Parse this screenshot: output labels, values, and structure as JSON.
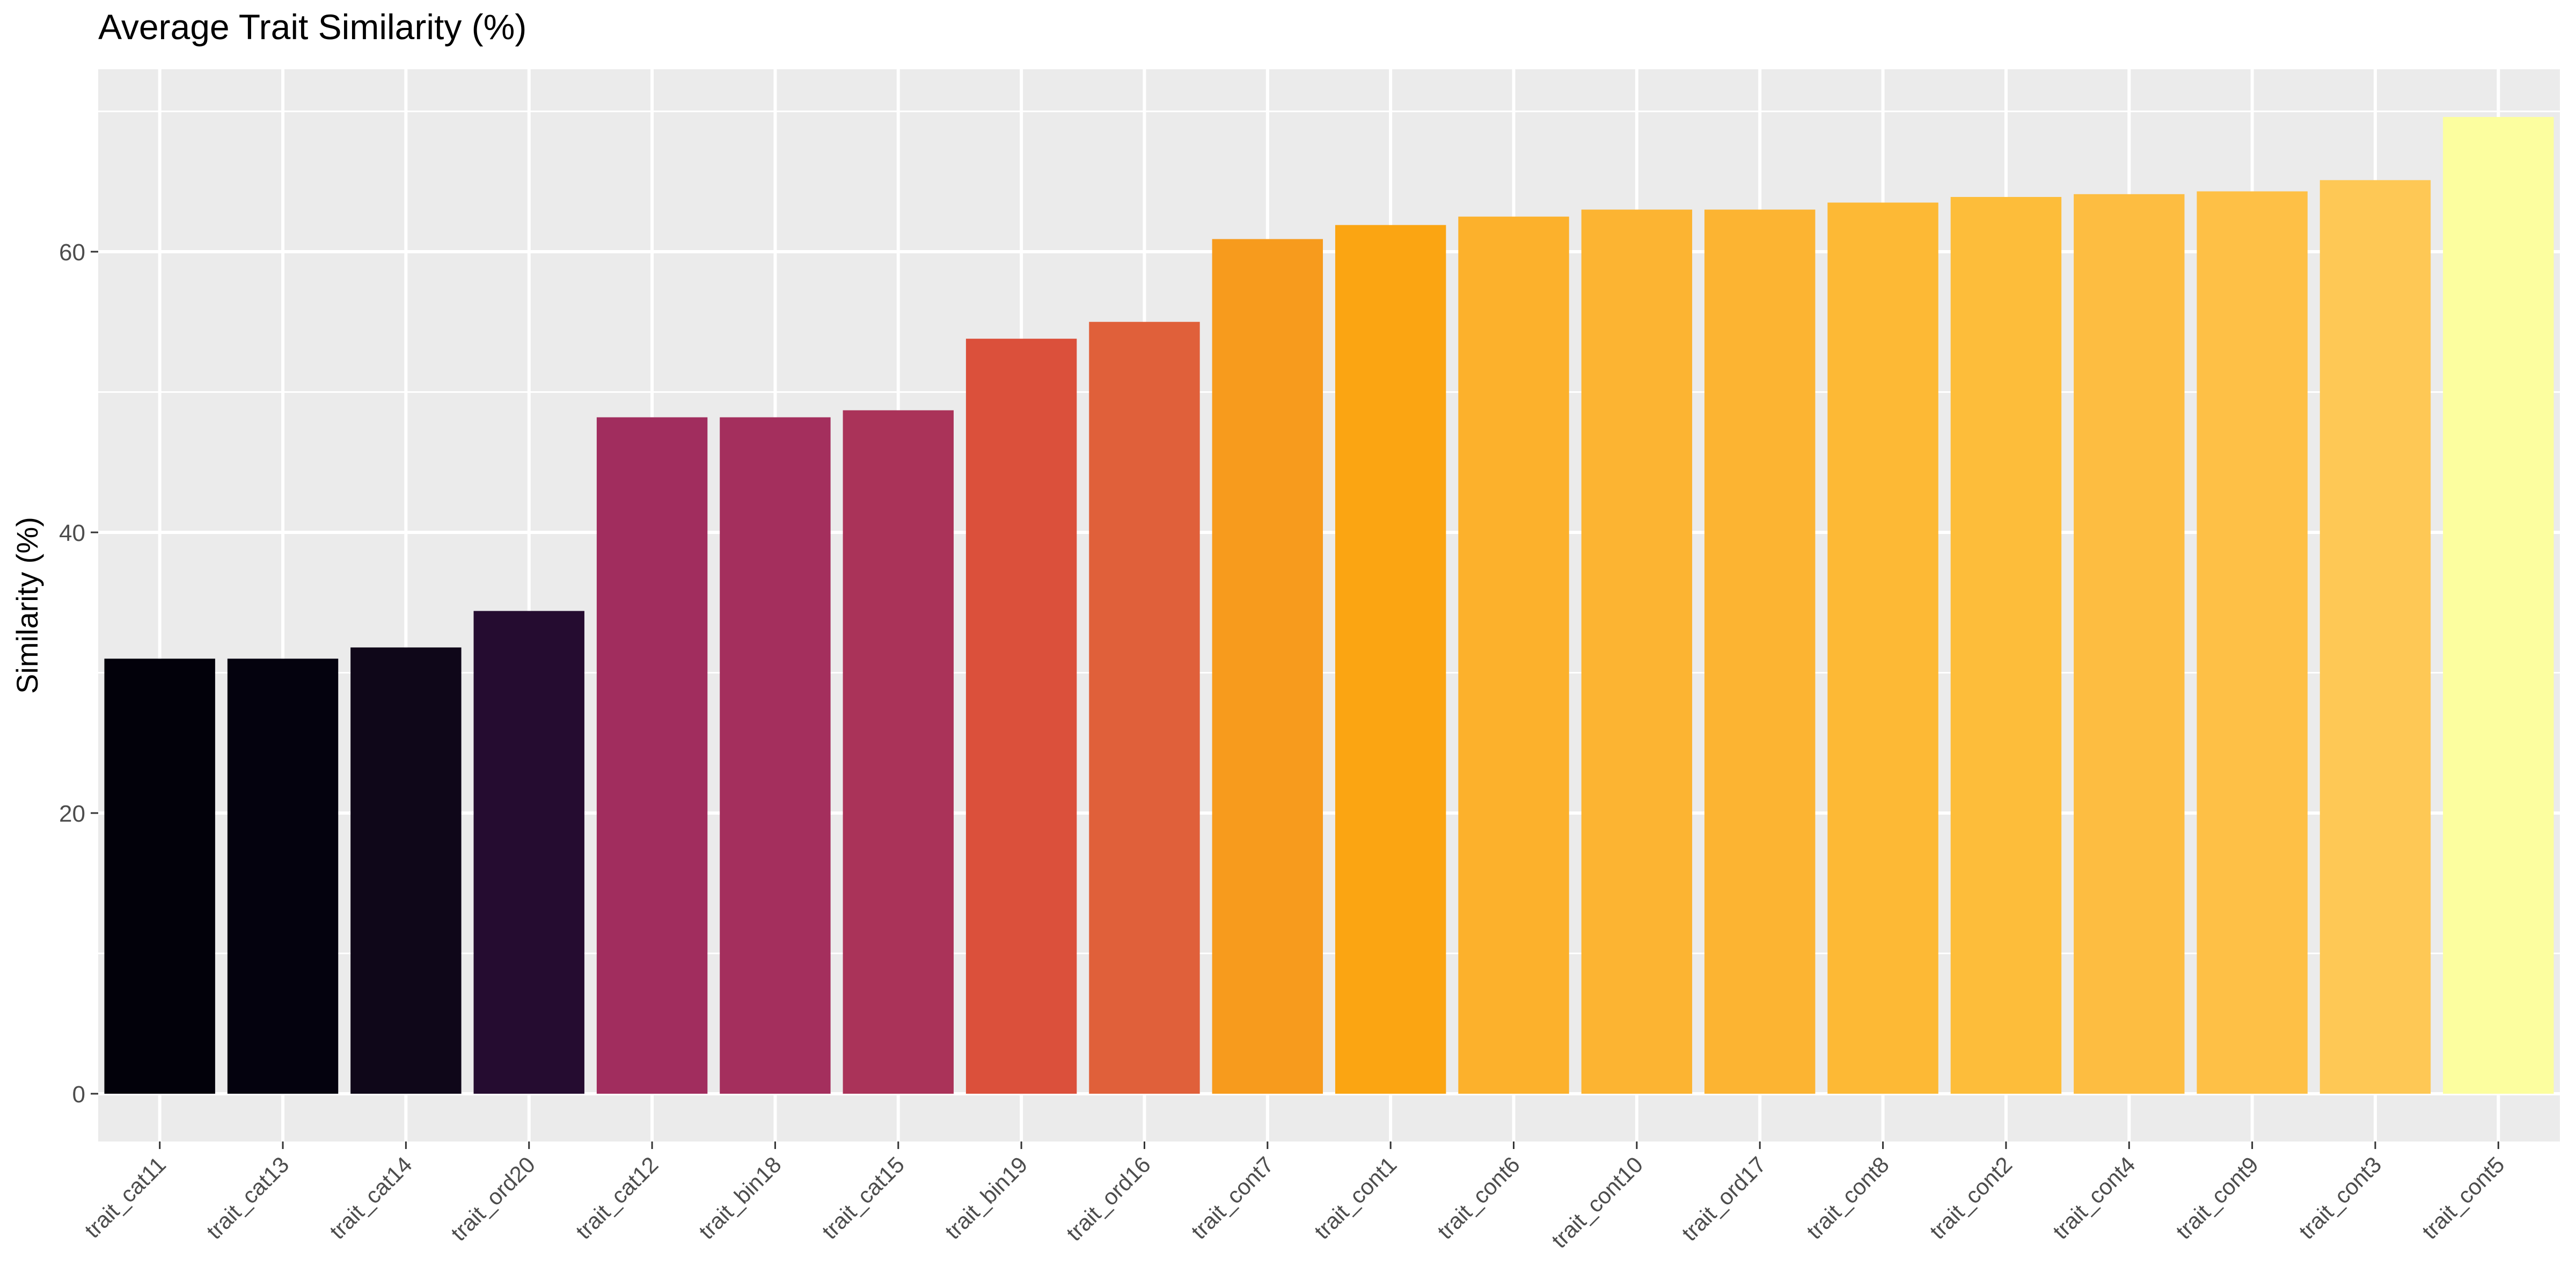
{
  "chart_data": {
    "type": "bar",
    "title": "Average Trait Similarity (%)",
    "xlabel": "",
    "ylabel": "Similarity (%)",
    "ylim": [
      0,
      70
    ],
    "yticks": [
      0,
      20,
      40,
      60
    ],
    "grid": true,
    "legend": "none",
    "categories": [
      "trait_cat11",
      "trait_cat13",
      "trait_cat14",
      "trait_ord20",
      "trait_cat12",
      "trait_bin18",
      "trait_cat15",
      "trait_bin19",
      "trait_ord16",
      "trait_cont7",
      "trait_cont1",
      "trait_cont6",
      "trait_cont10",
      "trait_ord17",
      "trait_cont8",
      "trait_cont2",
      "trait_cont4",
      "trait_cont9",
      "trait_cont3",
      "trait_cont5"
    ],
    "values": [
      31.0,
      31.0,
      31.8,
      34.4,
      48.2,
      48.2,
      48.7,
      53.8,
      55.0,
      60.9,
      61.9,
      62.5,
      63.0,
      63.0,
      63.5,
      63.9,
      64.1,
      64.3,
      65.1,
      69.6
    ],
    "colors": [
      "#02010a",
      "#04020e",
      "#0f0719",
      "#250c30",
      "#a12d5e",
      "#a42f5d",
      "#aa3359",
      "#db503b",
      "#e0603a",
      "#f79b1d",
      "#fba512",
      "#fcb12c",
      "#fcb432",
      "#fcb432",
      "#fdb935",
      "#fdbd3a",
      "#fdbd41",
      "#fec046",
      "#fec855",
      "#fcfe9f"
    ]
  }
}
